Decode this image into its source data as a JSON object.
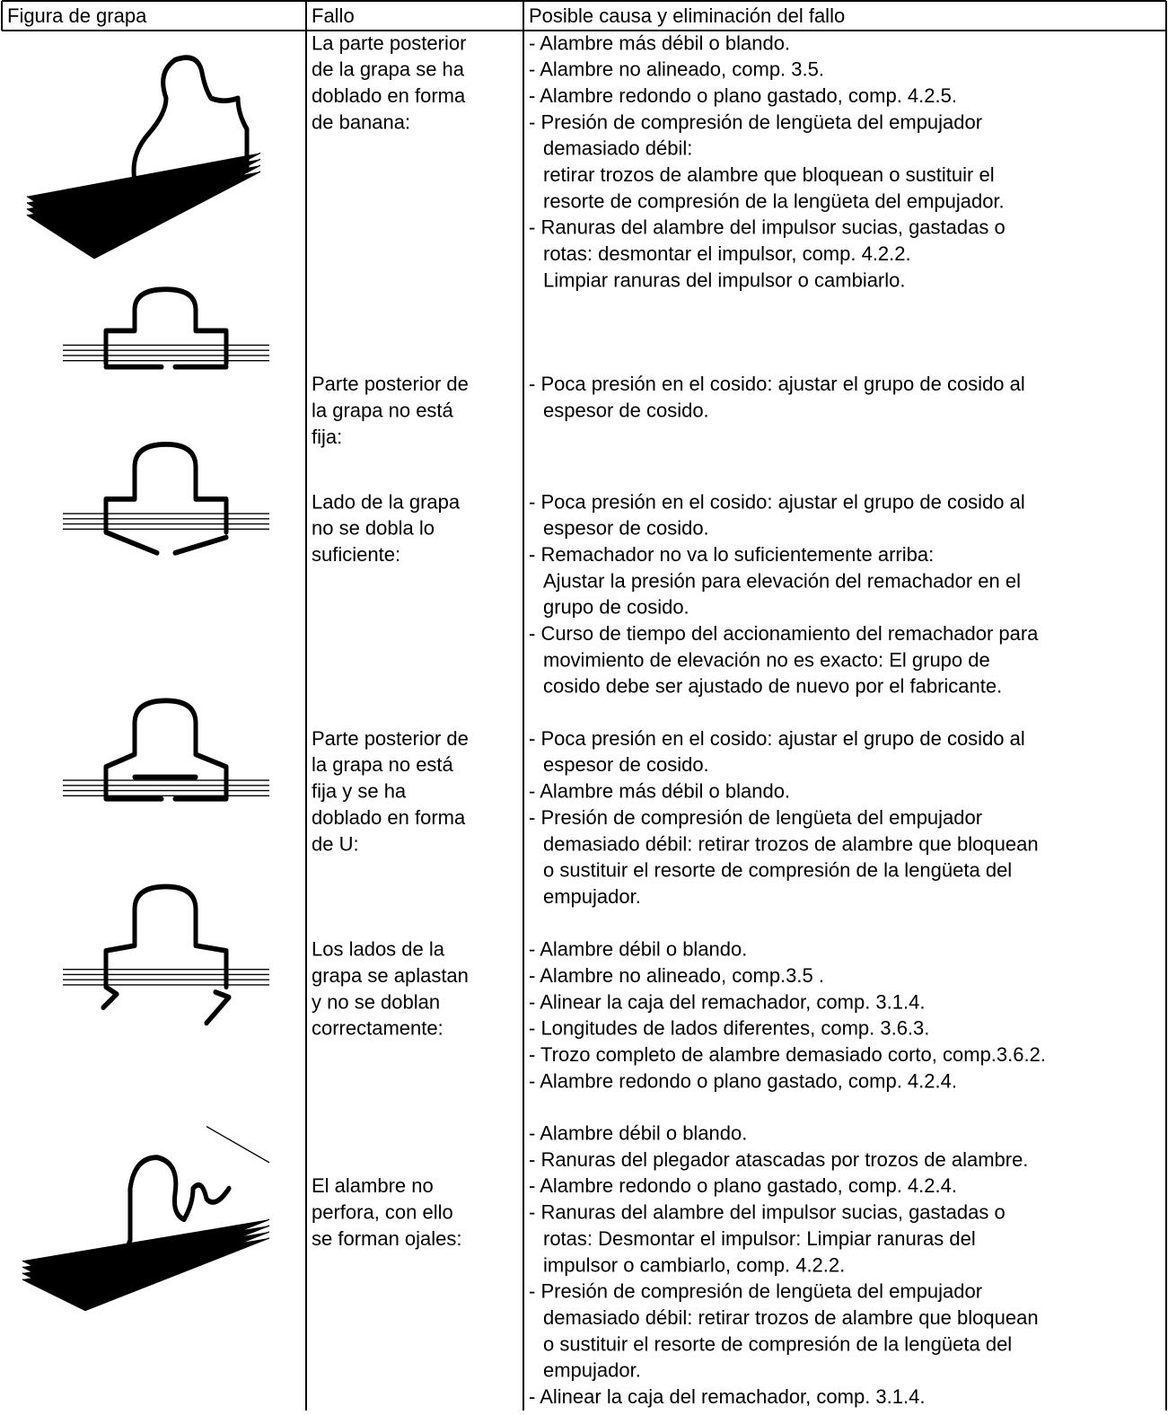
{
  "header": [
    "Figura de grapa",
    "Fallo",
    "Posible causa y eliminación del fallo"
  ],
  "rows": [
    {
      "fault": [
        "La parte posterior",
        "de la grapa se ha",
        "doblado en forma",
        "de banana:"
      ],
      "causes": [
        "- Alambre más débil o blando.",
        "- Alambre no alineado, comp. 3.5.",
        "- Alambre redondo o plano gastado, comp. 4.2.5.",
        "- Presión de compresión de lengüeta del empujador",
        "demasiado débil:",
        "retirar trozos de alambre que bloquean o sustituir el",
        "resorte de compresión de la lengüeta del empujador.",
        "- Ranuras del alambre del impulsor sucias, gastadas o",
        "rotas: desmontar el impulsor, comp. 4.2.2.",
        "Limpiar ranuras del impulsor o cambiarlo."
      ]
    },
    {
      "fault": [
        "Parte posterior de",
        "la grapa no está",
        "fija:"
      ],
      "causes": [
        "- Poca presión en el cosido: ajustar el grupo de cosido al",
        "espesor de cosido."
      ]
    },
    {
      "fault": [
        "Lado de la grapa",
        "no se dobla lo",
        "suficiente:"
      ],
      "causes": [
        "- Poca presión en el cosido: ajustar el grupo de cosido al",
        "espesor de cosido.",
        "- Remachador no va lo suficientemente arriba:",
        "Ajustar la presión para elevación del remachador en  el",
        "grupo de cosido.",
        "- Curso de tiempo del accionamiento del remachador para",
        "movimiento de elevación no es exacto: El grupo de",
        "cosido debe ser ajustado de nuevo por el fabricante."
      ]
    },
    {
      "fault": [
        "Parte posterior de",
        "la grapa no está",
        "fija y se ha",
        "doblado en forma",
        "de U:"
      ],
      "causes": [
        "- Poca presión en el cosido: ajustar el grupo de cosido al",
        "espesor de cosido.",
        "- Alambre más débil o blando.",
        "- Presión de compresión de lengüeta del empujador",
        "demasiado débil: retirar trozos de alambre que bloquean",
        "o sustituir el resorte de compresión de la lengüeta del",
        "empujador."
      ]
    },
    {
      "fault": [
        "Los lados de la",
        "grapa se aplastan",
        "y no se doblan",
        "correctamente:"
      ],
      "causes": [
        "- Alambre débil o blando.",
        "- Alambre no alineado, comp.3.5 .",
        "- Alinear la caja del remachador, comp. 3.1.4.",
        "- Longitudes de lados diferentes, comp. 3.6.3.",
        "- Trozo completo de alambre demasiado corto, comp.3.6.2.",
        "- Alambre redondo o plano gastado, comp. 4.2.4."
      ]
    },
    {
      "fault": [
        "El alambre no",
        "perfora, con ello",
        "se forman ojales:"
      ],
      "causes": [
        "- Alambre débil o blando.",
        "- Ranuras del plegador atascadas por trozos de alambre.",
        "- Alambre redondo o plano gastado, comp. 4.2.4.",
        "- Ranuras del alambre del impulsor sucias, gastadas o",
        "rotas: Desmontar el impulsor: Limpiar ranuras del",
        "impulsor o cambiarlo, comp. 4.2.2.",
        "- Presión de compresión de lengüeta del empujador",
        "demasiado débil: retirar trozos de alambre que bloquean",
        "o sustituir el resorte de compresión de la lengüeta del",
        "empujador.",
        "- Alinear la caja del remachador, comp. 3.1.4."
      ]
    }
  ]
}
